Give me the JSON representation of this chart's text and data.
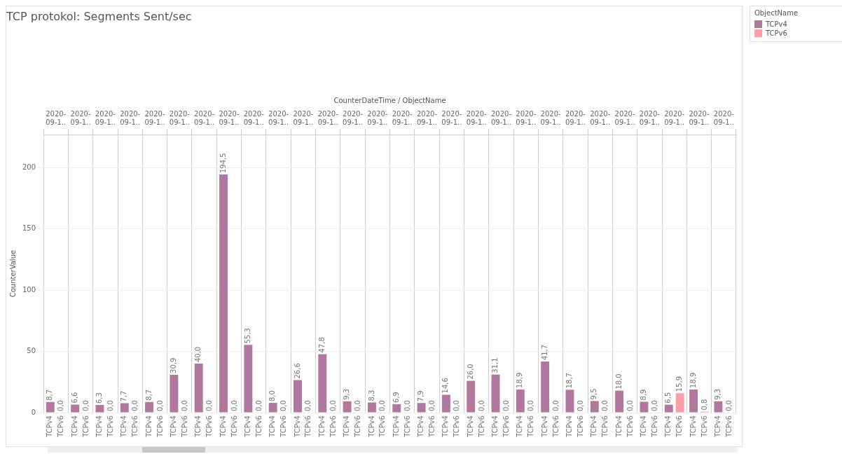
{
  "chart_data": {
    "type": "bar",
    "title": "TCP protokol: Segments Sent/sec",
    "xlabel": "CounterDateTime / ObjectName",
    "ylabel": "CounterValue",
    "legend_title": "ObjectName",
    "legend": "top right",
    "grid": true,
    "categories": [
      "2020-09-1..",
      "2020-09-1..",
      "2020-09-1..",
      "2020-09-1..",
      "2020-09-1..",
      "2020-09-1..",
      "2020-09-1..",
      "2020-09-1..",
      "2020-09-1..",
      "2020-09-1..",
      "2020-09-1..",
      "2020-09-1..",
      "2020-09-1..",
      "2020-09-1..",
      "2020-09-1..",
      "2020-09-1..",
      "2020-09-1..",
      "2020-09-1..",
      "2020-09-1..",
      "2020-09-1..",
      "2020-09-1..",
      "2020-09-1..",
      "2020-09-1..",
      "2020-09-1..",
      "2020-09-1..",
      "2020-09-1..",
      "2020-09-1..",
      "2020-09-1.."
    ],
    "ylim": [
      0,
      227
    ],
    "yticks": [
      0,
      50,
      100,
      150,
      200
    ],
    "series": [
      {
        "name": "TCPv4",
        "color": "#b0779f",
        "values": [
          8.7,
          6.6,
          6.3,
          7.7,
          8.7,
          30.9,
          40.0,
          194.5,
          55.3,
          8.0,
          26.6,
          47.8,
          9.3,
          8.3,
          6.9,
          7.9,
          14.6,
          26.0,
          31.1,
          18.9,
          41.7,
          18.7,
          9.5,
          18.0,
          8.9,
          6.5,
          18.9,
          9.3
        ],
        "value_labels": [
          "8,7",
          "6,6",
          "6,3",
          "7,7",
          "8,7",
          "30,9",
          "40,0",
          "194,5",
          "55,3",
          "8,0",
          "26,6",
          "47,8",
          "9,3",
          "8,3",
          "6,9",
          "7,9",
          "14,6",
          "26,0",
          "31,1",
          "18,9",
          "41,7",
          "18,7",
          "9,5",
          "18,0",
          "8,9",
          "6,5",
          "18,9",
          "9,3"
        ]
      },
      {
        "name": "TCPv6",
        "color": "#ff9da7",
        "values": [
          0,
          0,
          0,
          0,
          0,
          0,
          0,
          0,
          0,
          0,
          0,
          0,
          0,
          0,
          0,
          0,
          0,
          0,
          0,
          0,
          0,
          0,
          0,
          0,
          0,
          15.9,
          0.8,
          0
        ],
        "value_labels": [
          "0,0",
          "0,0",
          "0,0",
          "0,0",
          "0,0",
          "0,0",
          "0,0",
          "0,0",
          "0,0",
          "0,0",
          "0,0",
          "0,0",
          "0,0",
          "0,0",
          "0,0",
          "0,0",
          "0,0",
          "0,0",
          "0,0",
          "0,0",
          "0,0",
          "0,0",
          "0,0",
          "0,0",
          "0,0",
          "15,9",
          "0,8",
          "0,0"
        ]
      }
    ]
  }
}
